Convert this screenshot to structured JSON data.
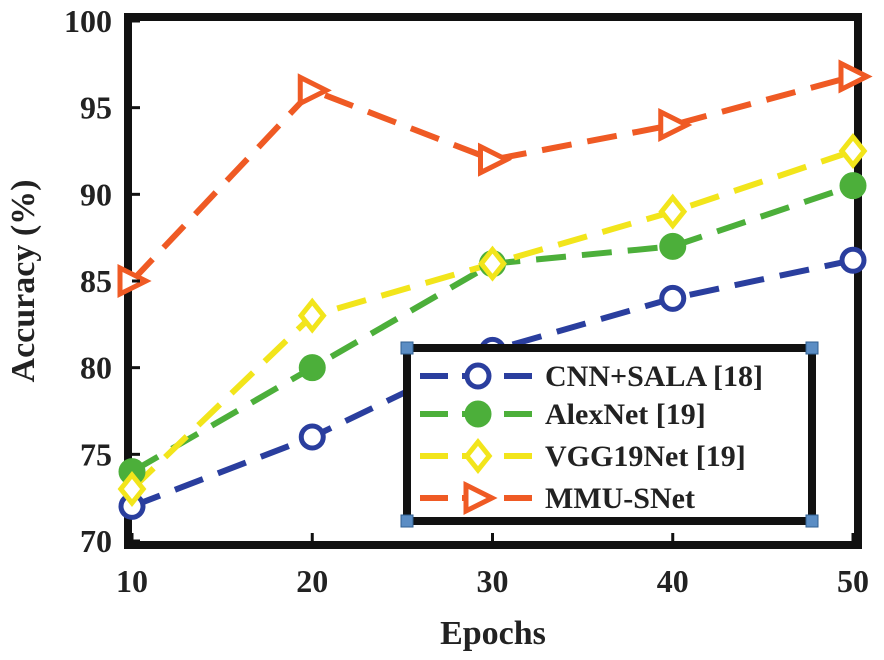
{
  "chart_data": {
    "type": "line",
    "xlabel": "Epochs",
    "ylabel": "Accuracy (%)",
    "x": [
      10,
      20,
      30,
      40,
      50
    ],
    "xlim": [
      10,
      50
    ],
    "ylim": [
      70,
      100
    ],
    "xticks": [
      "10",
      "20",
      "30",
      "40",
      "50"
    ],
    "yticks": [
      "70",
      "75",
      "80",
      "85",
      "90",
      "95",
      "100"
    ],
    "grid": false,
    "legend_position": "bottom-right",
    "series": [
      {
        "name": "CNN+SALA [18]",
        "values": [
          72,
          76,
          81,
          84,
          86.2
        ],
        "color": "#2a3e9e",
        "marker": "circle-open"
      },
      {
        "name": "AlexNet [19]",
        "values": [
          74,
          80,
          86,
          87,
          90.5
        ],
        "color": "#4caf3a",
        "marker": "circle-filled"
      },
      {
        "name": "VGG19Net [19]",
        "values": [
          73,
          83,
          86,
          89,
          92.5
        ],
        "color": "#f2e51b",
        "marker": "diamond-open"
      },
      {
        "name": "MMU-SNet",
        "values": [
          85,
          96,
          92,
          94,
          96.8
        ],
        "color": "#ef5a24",
        "marker": "triangle-right-open"
      }
    ]
  }
}
